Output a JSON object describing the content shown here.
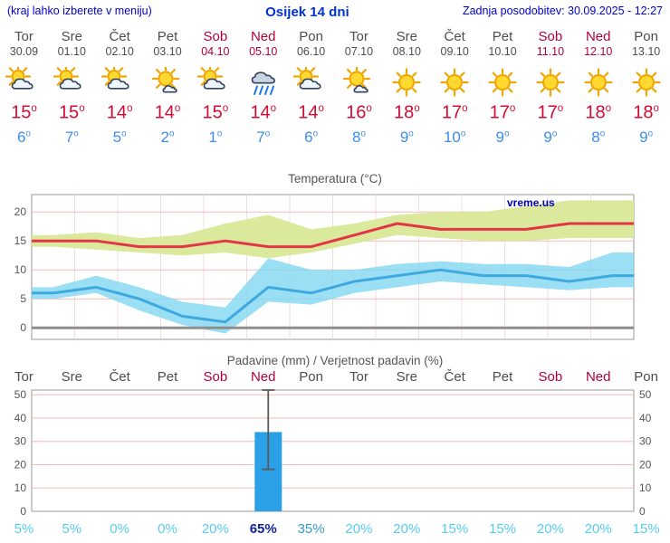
{
  "header": {
    "menu_note": "(kraj lahko izberete v meniju)",
    "title": "Osijek 14 dni",
    "last_updated": "Zadnja posodobitev: 30.09.2025 - 12:27"
  },
  "colors": {
    "header_blue": "#0000cc",
    "title_blue": "#0033cc",
    "day_gray": "#4d4d4d",
    "weekend_red": "#b30039",
    "high_temp_red": "#d40b32",
    "low_temp_blue": "#3b8eea",
    "max_line": "#e23545",
    "min_line": "#3fa8e0",
    "max_band": "#d9e897",
    "min_band": "#82d7f2",
    "bar_blue": "#2b9fe8",
    "prob_low": "#55ccee",
    "prob_mid": "#3399cc",
    "prob_high": "#112299"
  },
  "forecast": {
    "days": [
      {
        "name": "Tor",
        "date": "30.09",
        "weekend": false,
        "icon": "partly-cloudy",
        "high": 15,
        "low": 6
      },
      {
        "name": "Sre",
        "date": "01.10",
        "weekend": false,
        "icon": "partly-cloudy",
        "high": 15,
        "low": 7
      },
      {
        "name": "Čet",
        "date": "02.10",
        "weekend": false,
        "icon": "partly-cloudy",
        "high": 14,
        "low": 5
      },
      {
        "name": "Pet",
        "date": "03.10",
        "weekend": false,
        "icon": "mostly-sunny",
        "high": 14,
        "low": 2
      },
      {
        "name": "Sob",
        "date": "04.10",
        "weekend": true,
        "icon": "partly-cloudy",
        "high": 15,
        "low": 1
      },
      {
        "name": "Ned",
        "date": "05.10",
        "weekend": true,
        "icon": "rain",
        "high": 14,
        "low": 7
      },
      {
        "name": "Pon",
        "date": "06.10",
        "weekend": false,
        "icon": "partly-cloudy",
        "high": 14,
        "low": 6
      },
      {
        "name": "Tor",
        "date": "07.10",
        "weekend": false,
        "icon": "mostly-sunny",
        "high": 16,
        "low": 8
      },
      {
        "name": "Sre",
        "date": "08.10",
        "weekend": false,
        "icon": "sunny",
        "high": 18,
        "low": 9
      },
      {
        "name": "Čet",
        "date": "09.10",
        "weekend": false,
        "icon": "sunny",
        "high": 17,
        "low": 10
      },
      {
        "name": "Pet",
        "date": "10.10",
        "weekend": false,
        "icon": "sunny",
        "high": 17,
        "low": 9
      },
      {
        "name": "Sob",
        "date": "11.10",
        "weekend": true,
        "icon": "sunny",
        "high": 17,
        "low": 9
      },
      {
        "name": "Ned",
        "date": "12.10",
        "weekend": true,
        "icon": "sunny",
        "high": 18,
        "low": 8
      },
      {
        "name": "Pon",
        "date": "13.10",
        "weekend": false,
        "icon": "sunny",
        "high": 18,
        "low": 9
      }
    ]
  },
  "chart_data": [
    {
      "type": "line",
      "title": "Temperatura (°C)",
      "watermark": "vreme.us",
      "categories": [
        "Tor",
        "Sre",
        "Čet",
        "Pet",
        "Sob",
        "Ned",
        "Pon",
        "Tor",
        "Sre",
        "Čet",
        "Pet",
        "Sob",
        "Ned",
        "Pon"
      ],
      "y_ticks": [
        0,
        5,
        10,
        15,
        20
      ],
      "ylim": [
        -2,
        23
      ],
      "grid": true,
      "series": [
        {
          "name": "max-temp",
          "color": "#e23545",
          "values": [
            15,
            15,
            14,
            14,
            15,
            14,
            14,
            16,
            18,
            17,
            17,
            17,
            18,
            18
          ]
        },
        {
          "name": "min-temp",
          "color": "#3fa8e0",
          "values": [
            6,
            7,
            5,
            2,
            1,
            7,
            6,
            8,
            9,
            10,
            9,
            9,
            8,
            9
          ]
        }
      ],
      "bands": [
        {
          "name": "max-range",
          "color": "#d9e897",
          "opacity": 0.95,
          "upper": [
            16,
            16.5,
            15.5,
            16,
            18,
            19.5,
            17,
            18,
            19.5,
            20,
            20,
            21,
            22,
            22
          ],
          "lower": [
            14,
            13.5,
            13,
            12.5,
            13,
            12,
            13,
            14.5,
            16,
            15.5,
            15,
            15,
            15.5,
            15.5
          ]
        },
        {
          "name": "min-range",
          "color": "#82d7f2",
          "opacity": 0.8,
          "upper": [
            7,
            9,
            7,
            4.5,
            3.5,
            12,
            10,
            10,
            11,
            11.5,
            11,
            11,
            10.5,
            13
          ],
          "lower": [
            5,
            6,
            3,
            0.5,
            -1,
            4.5,
            4,
            6,
            7,
            8,
            7.5,
            7,
            6.5,
            7
          ]
        }
      ]
    },
    {
      "type": "bar",
      "title": "Padavine (mm) / Verjetnost padavin (%)",
      "categories": [
        "Tor",
        "Sre",
        "Čet",
        "Pet",
        "Sob",
        "Ned",
        "Pon",
        "Tor",
        "Sre",
        "Čet",
        "Pet",
        "Sob",
        "Ned",
        "Pon"
      ],
      "weekend_indices": [
        4,
        5,
        11,
        12
      ],
      "y_ticks": [
        0,
        10,
        20,
        30,
        40,
        50
      ],
      "ylim": [
        0,
        52
      ],
      "grid": true,
      "values": [
        0,
        0,
        0,
        0,
        0,
        34,
        0,
        0,
        0,
        0,
        0,
        0,
        0,
        0
      ],
      "whiskers": [
        {
          "index": 5,
          "low": 18,
          "high": 52
        }
      ],
      "probabilities": [
        5,
        5,
        0,
        0,
        20,
        65,
        35,
        20,
        20,
        15,
        15,
        20,
        20,
        15
      ],
      "bar_color": "#2b9fe8"
    }
  ]
}
